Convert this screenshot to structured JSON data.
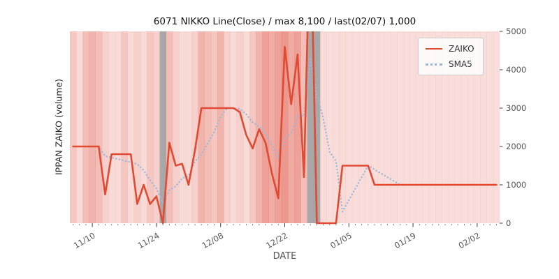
{
  "title": "6071 NIKKO Line(Close) / max 8,100 / last(02/07) 1,000",
  "axes": {
    "xlabel": "DATE",
    "ylabel": "IPPAN ZAIKO (volume)"
  },
  "legend": {
    "items": [
      "ZAIKO",
      "SMA5"
    ],
    "position": "upper right"
  },
  "colors": {
    "zaiko_line": "#e04a33",
    "sma5_line": "#9fb6d8",
    "band_base": "#dd4433",
    "gray_band": "#9e9e9e",
    "tick_text": "#555555",
    "title_text": "#111111"
  },
  "y_ticks": [
    0,
    1000,
    2000,
    3000,
    4000,
    5000
  ],
  "x_tick_labels": [
    "11/10",
    "11/24",
    "12/08",
    "12/22",
    "01/05",
    "01/19",
    "02/02"
  ],
  "chart_data": {
    "type": "line",
    "grid": false,
    "ylim": [
      0,
      5000
    ],
    "max_value": 8100,
    "last_value": 1000,
    "last_date": "02/07",
    "x": [
      "11/07",
      "11/08",
      "11/09",
      "11/10",
      "11/13",
      "11/14",
      "11/15",
      "11/16",
      "11/17",
      "11/20",
      "11/21",
      "11/22",
      "11/23",
      "11/24",
      "11/27",
      "11/28",
      "11/29",
      "11/30",
      "12/01",
      "12/04",
      "12/05",
      "12/06",
      "12/07",
      "12/08",
      "12/11",
      "12/12",
      "12/13",
      "12/14",
      "12/15",
      "12/18",
      "12/19",
      "12/20",
      "12/21",
      "12/22",
      "12/25",
      "12/26",
      "12/27",
      "12/28",
      "12/29",
      "01/01",
      "01/02",
      "01/03",
      "01/04",
      "01/05",
      "01/08",
      "01/09",
      "01/10",
      "01/11",
      "01/12",
      "01/15",
      "01/16",
      "01/17",
      "01/18",
      "01/19",
      "01/22",
      "01/23",
      "01/24",
      "01/25",
      "01/26",
      "01/29",
      "01/30",
      "01/31",
      "02/01",
      "02/02",
      "02/05",
      "02/06",
      "02/07"
    ],
    "series": [
      {
        "name": "ZAIKO",
        "style": "solid",
        "values": [
          2000,
          2000,
          2000,
          2000,
          2000,
          750,
          1800,
          1800,
          1800,
          1800,
          500,
          1000,
          500,
          700,
          0,
          2100,
          1500,
          1550,
          1000,
          1900,
          3000,
          3000,
          3000,
          3000,
          3000,
          3000,
          2900,
          2300,
          1950,
          2450,
          2100,
          1300,
          650,
          4600,
          3100,
          4400,
          1200,
          8100,
          0,
          0,
          0,
          0,
          1500,
          1500,
          1500,
          1500,
          1500,
          1000,
          1000,
          1000,
          1000,
          1000,
          1000,
          1000,
          1000,
          1000,
          1000,
          1000,
          1000,
          1000,
          1000,
          1000,
          1000,
          1000,
          1000,
          1000,
          1000
        ]
      },
      {
        "name": "SMA5",
        "style": "dotted",
        "window": 5,
        "derived_from": "ZAIKO"
      }
    ],
    "band_alpha": [
      0.3,
      0.2,
      0.35,
      0.4,
      0.35,
      0.25,
      0.2,
      0.2,
      0.3,
      0.2,
      0.25,
      0.2,
      0.3,
      0.25,
      0,
      0.35,
      0.25,
      0.2,
      0.2,
      0.25,
      0.4,
      0.35,
      0.3,
      0.4,
      0.25,
      0.2,
      0.25,
      0.2,
      0.3,
      0.4,
      0.5,
      0.45,
      0.5,
      0.55,
      0.45,
      0.5,
      0.35,
      0,
      0,
      0.2,
      0.18,
      0.18,
      0.2,
      0.18,
      0.18,
      0.18,
      0.18,
      0.18,
      0.18,
      0.18,
      0.18,
      0.18,
      0.18,
      0.18,
      0.18,
      0.18,
      0.18,
      0.18,
      0.18,
      0.18,
      0.18,
      0.18,
      0.18,
      0.18,
      0.18,
      0.18,
      0.18
    ],
    "gray_band_indices": [
      14,
      37,
      38
    ]
  }
}
